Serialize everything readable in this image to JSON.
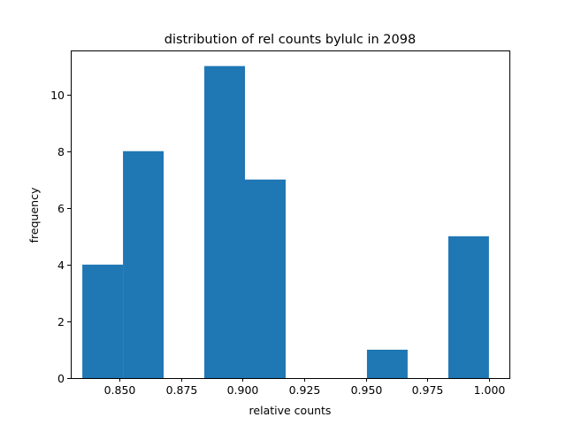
{
  "chart_data": {
    "type": "bar",
    "title": "distribution of rel counts bylulc in 2098",
    "xlabel": "relative counts",
    "ylabel": "frequency",
    "xlim": [
      0.8303,
      1.0083
    ],
    "ylim": [
      0,
      11.55
    ],
    "bins": [
      {
        "start": 0.835,
        "end": 0.8515,
        "count": 4
      },
      {
        "start": 0.8515,
        "end": 0.868,
        "count": 8
      },
      {
        "start": 0.868,
        "end": 0.8845,
        "count": 0
      },
      {
        "start": 0.8845,
        "end": 0.901,
        "count": 11
      },
      {
        "start": 0.901,
        "end": 0.9175,
        "count": 7
      },
      {
        "start": 0.9175,
        "end": 0.934,
        "count": 0
      },
      {
        "start": 0.934,
        "end": 0.9505,
        "count": 0
      },
      {
        "start": 0.9505,
        "end": 0.967,
        "count": 1
      },
      {
        "start": 0.967,
        "end": 0.9835,
        "count": 0
      },
      {
        "start": 0.9835,
        "end": 1.0,
        "count": 5
      }
    ],
    "xticks": [
      {
        "value": 0.85,
        "label": "0.850"
      },
      {
        "value": 0.875,
        "label": "0.875"
      },
      {
        "value": 0.9,
        "label": "0.900"
      },
      {
        "value": 0.925,
        "label": "0.925"
      },
      {
        "value": 0.95,
        "label": "0.950"
      },
      {
        "value": 0.975,
        "label": "0.975"
      },
      {
        "value": 1.0,
        "label": "1.000"
      }
    ],
    "yticks": [
      {
        "value": 0,
        "label": "0"
      },
      {
        "value": 2,
        "label": "2"
      },
      {
        "value": 4,
        "label": "4"
      },
      {
        "value": 6,
        "label": "6"
      },
      {
        "value": 8,
        "label": "8"
      },
      {
        "value": 10,
        "label": "10"
      }
    ],
    "bar_color": "#1f77b4",
    "grid": false,
    "legend": false
  }
}
